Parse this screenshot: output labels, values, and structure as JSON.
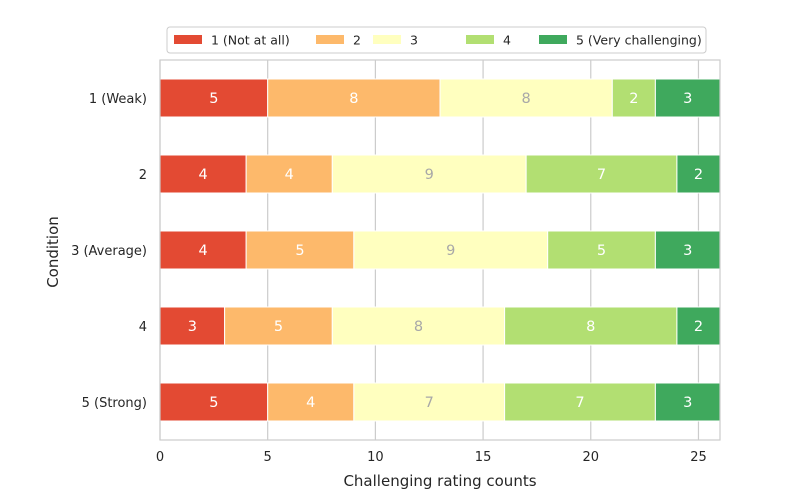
{
  "chart_data": {
    "type": "bar",
    "orientation": "horizontal",
    "stacked": true,
    "title": "",
    "xlabel": "Challenging rating counts",
    "ylabel": "Condition",
    "xlim": [
      0,
      26
    ],
    "xticks": [
      0,
      5,
      10,
      15,
      20,
      25
    ],
    "grid": "x",
    "legend_position": "top",
    "categories": [
      "1 (Weak)",
      "2",
      "3 (Average)",
      "4",
      "5 (Strong)"
    ],
    "series": [
      {
        "name": "1 (Not at all)",
        "color": "#e34a33",
        "label_color": "#ffffff",
        "values": [
          5,
          4,
          4,
          3,
          5
        ]
      },
      {
        "name": "2",
        "color": "#fdb96b",
        "label_color": "#ffffff",
        "values": [
          8,
          4,
          5,
          5,
          4
        ]
      },
      {
        "name": "3",
        "color": "#ffffbf",
        "label_color": "#a8a8a8",
        "values": [
          8,
          9,
          9,
          8,
          7
        ]
      },
      {
        "name": "4",
        "color": "#b2df72",
        "label_color": "#ffffff",
        "values": [
          2,
          7,
          5,
          8,
          7
        ]
      },
      {
        "name": "5 (Very challenging)",
        "color": "#3fa95d",
        "label_color": "#ffffff",
        "values": [
          3,
          2,
          3,
          2,
          3
        ]
      }
    ]
  }
}
